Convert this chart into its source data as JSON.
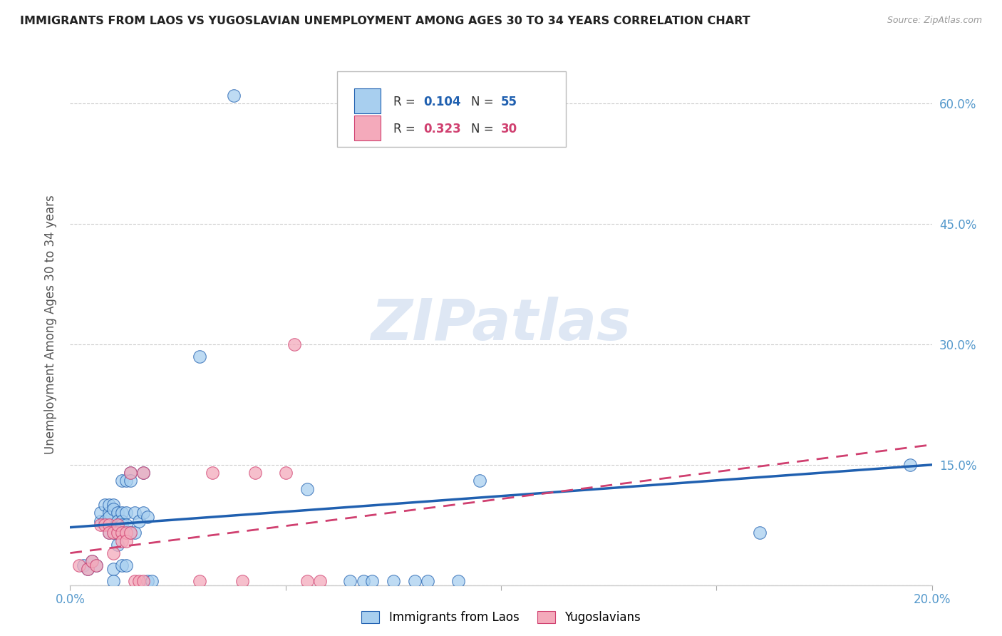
{
  "title": "IMMIGRANTS FROM LAOS VS YUGOSLAVIAN UNEMPLOYMENT AMONG AGES 30 TO 34 YEARS CORRELATION CHART",
  "source": "Source: ZipAtlas.com",
  "ylabel": "Unemployment Among Ages 30 to 34 years",
  "xlim": [
    0.0,
    0.2
  ],
  "ylim": [
    0.0,
    0.65
  ],
  "yticks": [
    0.0,
    0.15,
    0.3,
    0.45,
    0.6
  ],
  "ytick_labels": [
    "",
    "15.0%",
    "30.0%",
    "45.0%",
    "60.0%"
  ],
  "xticks": [
    0.0,
    0.05,
    0.1,
    0.15,
    0.2
  ],
  "xtick_labels": [
    "0.0%",
    "",
    "",
    "",
    "20.0%"
  ],
  "watermark": "ZIPatlas",
  "legend_label1": "Immigrants from Laos",
  "legend_label2": "Yugoslavians",
  "blue_color": "#A8CFEF",
  "pink_color": "#F4AABB",
  "line_blue": "#2060B0",
  "line_pink": "#D04070",
  "title_color": "#222222",
  "axis_color": "#5599CC",
  "grid_color": "#CCCCCC",
  "blue_scatter": [
    [
      0.003,
      0.025
    ],
    [
      0.004,
      0.02
    ],
    [
      0.005,
      0.03
    ],
    [
      0.006,
      0.025
    ],
    [
      0.007,
      0.08
    ],
    [
      0.007,
      0.09
    ],
    [
      0.008,
      0.1
    ],
    [
      0.008,
      0.08
    ],
    [
      0.009,
      0.09
    ],
    [
      0.009,
      0.1
    ],
    [
      0.009,
      0.085
    ],
    [
      0.009,
      0.065
    ],
    [
      0.01,
      0.1
    ],
    [
      0.01,
      0.095
    ],
    [
      0.01,
      0.07
    ],
    [
      0.01,
      0.065
    ],
    [
      0.01,
      0.02
    ],
    [
      0.01,
      0.005
    ],
    [
      0.011,
      0.09
    ],
    [
      0.011,
      0.08
    ],
    [
      0.011,
      0.07
    ],
    [
      0.011,
      0.05
    ],
    [
      0.012,
      0.13
    ],
    [
      0.012,
      0.09
    ],
    [
      0.012,
      0.08
    ],
    [
      0.012,
      0.075
    ],
    [
      0.012,
      0.025
    ],
    [
      0.013,
      0.13
    ],
    [
      0.013,
      0.09
    ],
    [
      0.013,
      0.075
    ],
    [
      0.013,
      0.025
    ],
    [
      0.014,
      0.14
    ],
    [
      0.014,
      0.13
    ],
    [
      0.014,
      0.065
    ],
    [
      0.015,
      0.09
    ],
    [
      0.015,
      0.065
    ],
    [
      0.016,
      0.08
    ],
    [
      0.017,
      0.14
    ],
    [
      0.017,
      0.09
    ],
    [
      0.018,
      0.085
    ],
    [
      0.018,
      0.005
    ],
    [
      0.019,
      0.005
    ],
    [
      0.03,
      0.285
    ],
    [
      0.038,
      0.61
    ],
    [
      0.055,
      0.12
    ],
    [
      0.065,
      0.005
    ],
    [
      0.068,
      0.005
    ],
    [
      0.07,
      0.005
    ],
    [
      0.075,
      0.005
    ],
    [
      0.08,
      0.005
    ],
    [
      0.083,
      0.005
    ],
    [
      0.09,
      0.005
    ],
    [
      0.095,
      0.13
    ],
    [
      0.16,
      0.065
    ],
    [
      0.195,
      0.15
    ]
  ],
  "pink_scatter": [
    [
      0.002,
      0.025
    ],
    [
      0.004,
      0.02
    ],
    [
      0.005,
      0.03
    ],
    [
      0.006,
      0.025
    ],
    [
      0.007,
      0.075
    ],
    [
      0.008,
      0.075
    ],
    [
      0.009,
      0.075
    ],
    [
      0.009,
      0.065
    ],
    [
      0.01,
      0.065
    ],
    [
      0.01,
      0.04
    ],
    [
      0.011,
      0.065
    ],
    [
      0.011,
      0.075
    ],
    [
      0.012,
      0.065
    ],
    [
      0.012,
      0.055
    ],
    [
      0.013,
      0.065
    ],
    [
      0.013,
      0.055
    ],
    [
      0.014,
      0.14
    ],
    [
      0.014,
      0.065
    ],
    [
      0.015,
      0.005
    ],
    [
      0.016,
      0.005
    ],
    [
      0.017,
      0.005
    ],
    [
      0.017,
      0.14
    ],
    [
      0.03,
      0.005
    ],
    [
      0.033,
      0.14
    ],
    [
      0.04,
      0.005
    ],
    [
      0.043,
      0.14
    ],
    [
      0.05,
      0.14
    ],
    [
      0.052,
      0.3
    ],
    [
      0.055,
      0.005
    ],
    [
      0.058,
      0.005
    ]
  ],
  "blue_line_x": [
    0.0,
    0.2
  ],
  "blue_line_y": [
    0.072,
    0.15
  ],
  "pink_line_x": [
    0.0,
    0.2
  ],
  "pink_line_y": [
    0.04,
    0.175
  ]
}
